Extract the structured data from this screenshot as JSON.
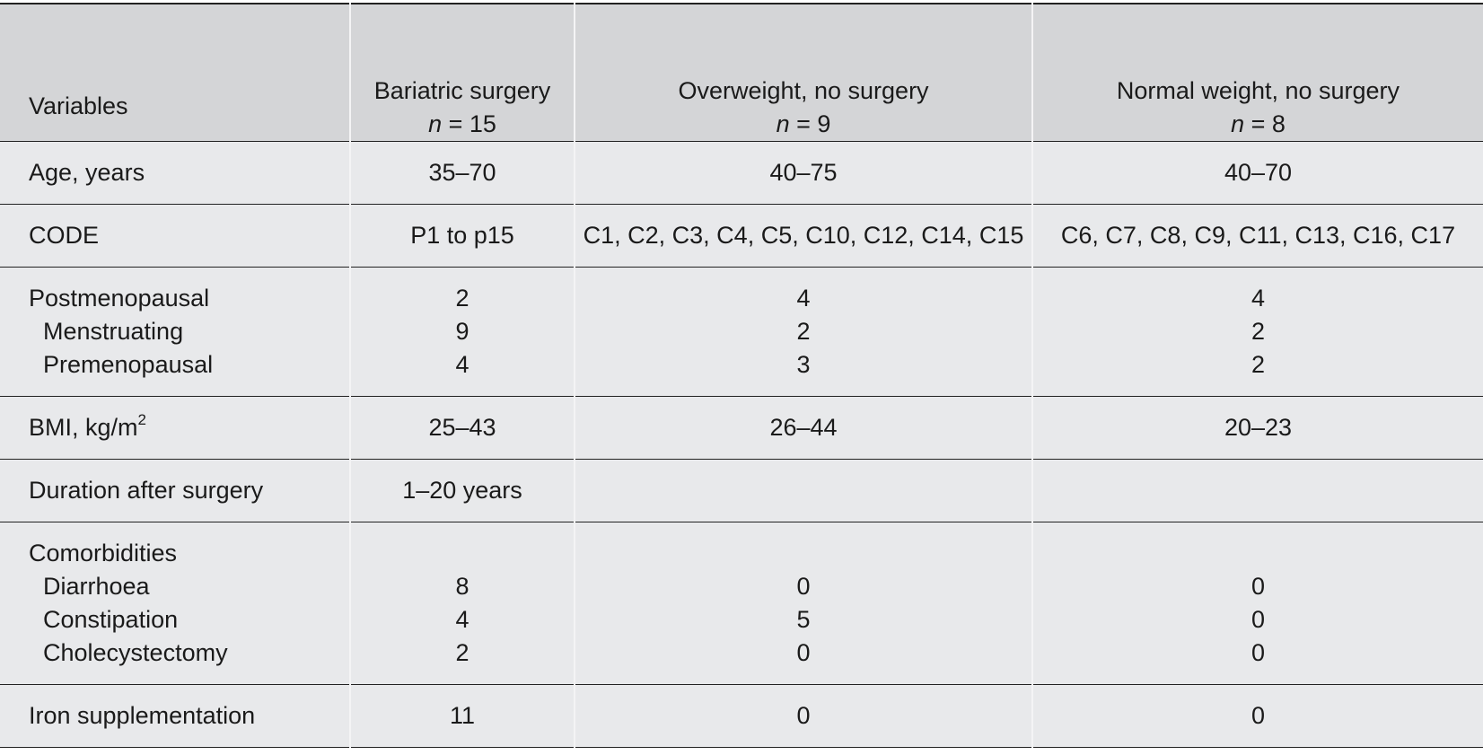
{
  "table": {
    "header": [
      {
        "label": "Variables"
      },
      {
        "label": "Bariatric surgery",
        "n": "n",
        "count": "= 15"
      },
      {
        "label": "Overweight, no surgery",
        "n": "n",
        "count": "= 9"
      },
      {
        "label": "Normal weight, no surgery",
        "n": "n",
        "count": "= 8"
      }
    ],
    "groups": [
      {
        "rows": [
          {
            "label": "Age, years",
            "indent": false,
            "cells": [
              "35–70",
              "40–75",
              "40–70"
            ]
          }
        ]
      },
      {
        "rows": [
          {
            "label": "CODE",
            "indent": false,
            "cells": [
              "P1 to p15",
              "C1, C2, C3, C4, C5, C10, C12, C14, C15",
              "C6, C7, C8, C9, C11, C13, C16, C17"
            ]
          }
        ]
      },
      {
        "rows": [
          {
            "label": "Postmenopausal",
            "indent": false,
            "cells": [
              "2",
              "4",
              "4"
            ]
          },
          {
            "label": "Menstruating",
            "indent": true,
            "cells": [
              "9",
              "2",
              "2"
            ]
          },
          {
            "label": "Premenopausal",
            "indent": true,
            "cells": [
              "4",
              "3",
              "2"
            ]
          }
        ]
      },
      {
        "rows": [
          {
            "label": "BMI, kg/m",
            "label_sup": "2",
            "indent": false,
            "cells": [
              "25–43",
              "26–44",
              "20–23"
            ]
          }
        ]
      },
      {
        "rows": [
          {
            "label": "Duration after surgery",
            "indent": false,
            "cells": [
              "1–20 years"
            ]
          }
        ]
      },
      {
        "rows": [
          {
            "label": "Comorbidities",
            "indent": false,
            "cells": []
          },
          {
            "label": "Diarrhoea",
            "indent": true,
            "cells": [
              "8",
              "0",
              "0"
            ]
          },
          {
            "label": "Constipation",
            "indent": true,
            "cells": [
              "4",
              "5",
              "0"
            ]
          },
          {
            "label": "Cholecystectomy",
            "indent": true,
            "cells": [
              "2",
              "0",
              "0"
            ]
          }
        ]
      },
      {
        "rows": [
          {
            "label": "Iron supplementation",
            "indent": false,
            "cells": [
              "11",
              "0",
              "0"
            ]
          }
        ]
      }
    ]
  }
}
